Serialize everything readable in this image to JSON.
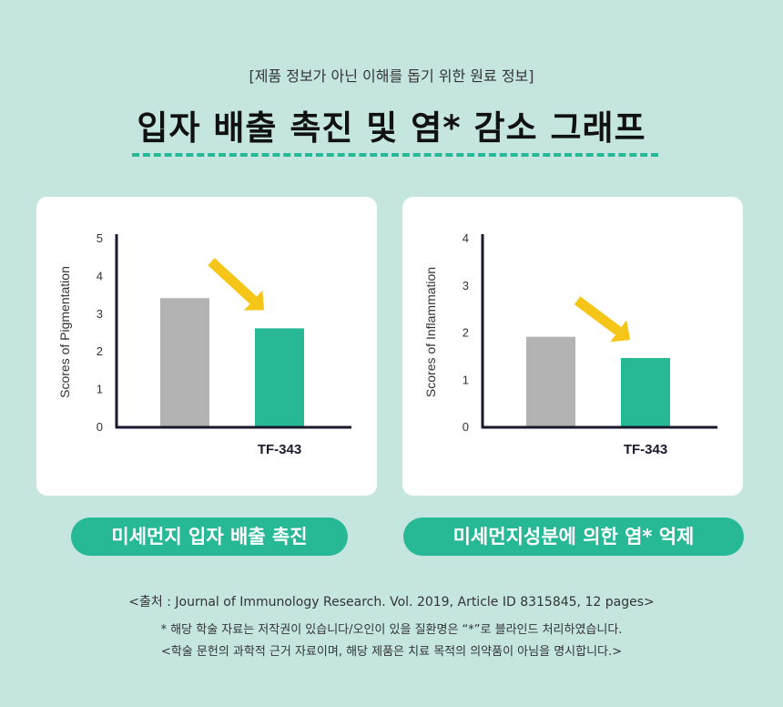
{
  "header": {
    "subtitle": "[제품 정보가 아닌 이해를 돕기 위한 원료 정보]",
    "title": "입자 배출 촉진 및 염* 감소 그래프"
  },
  "chart_data": [
    {
      "type": "bar",
      "categories": [
        "",
        "TF-343"
      ],
      "values": [
        3.4,
        2.6
      ],
      "ylabel": "Scores of Pigmentation",
      "xlabel": "",
      "ylim": [
        0,
        5
      ],
      "yticks": [
        0,
        1,
        2,
        3,
        4,
        5
      ],
      "bar_colors": [
        "#b3b3b3",
        "#27b995"
      ],
      "arrow_color": "#f5c518",
      "grid": false,
      "caption": "미세먼지 입자 배출 촉진"
    },
    {
      "type": "bar",
      "categories": [
        "",
        "TF-343"
      ],
      "values": [
        1.9,
        1.45
      ],
      "ylabel": "Scores of Inflammation",
      "xlabel": "",
      "ylim": [
        0,
        4
      ],
      "yticks": [
        0,
        1,
        2,
        3,
        4
      ],
      "bar_colors": [
        "#b3b3b3",
        "#27b995"
      ],
      "arrow_color": "#f5c518",
      "grid": false,
      "caption": "미세먼지성분에 의한 염* 억제"
    }
  ],
  "footer": {
    "source": "<출처 : Journal of Immunology Research. Vol. 2019, Article ID 8315845, 12 pages>",
    "note1": "* 해당 학술 자료는 저작권이 있습니다/오인이 있을 질환명은 “*”로 블라인드 처리하였습니다.",
    "note2": "<학술 문헌의 과학적 근거 자료이며, 해당 제품은 치료 목적의 의약품이 아님을 명시합니다.>"
  }
}
